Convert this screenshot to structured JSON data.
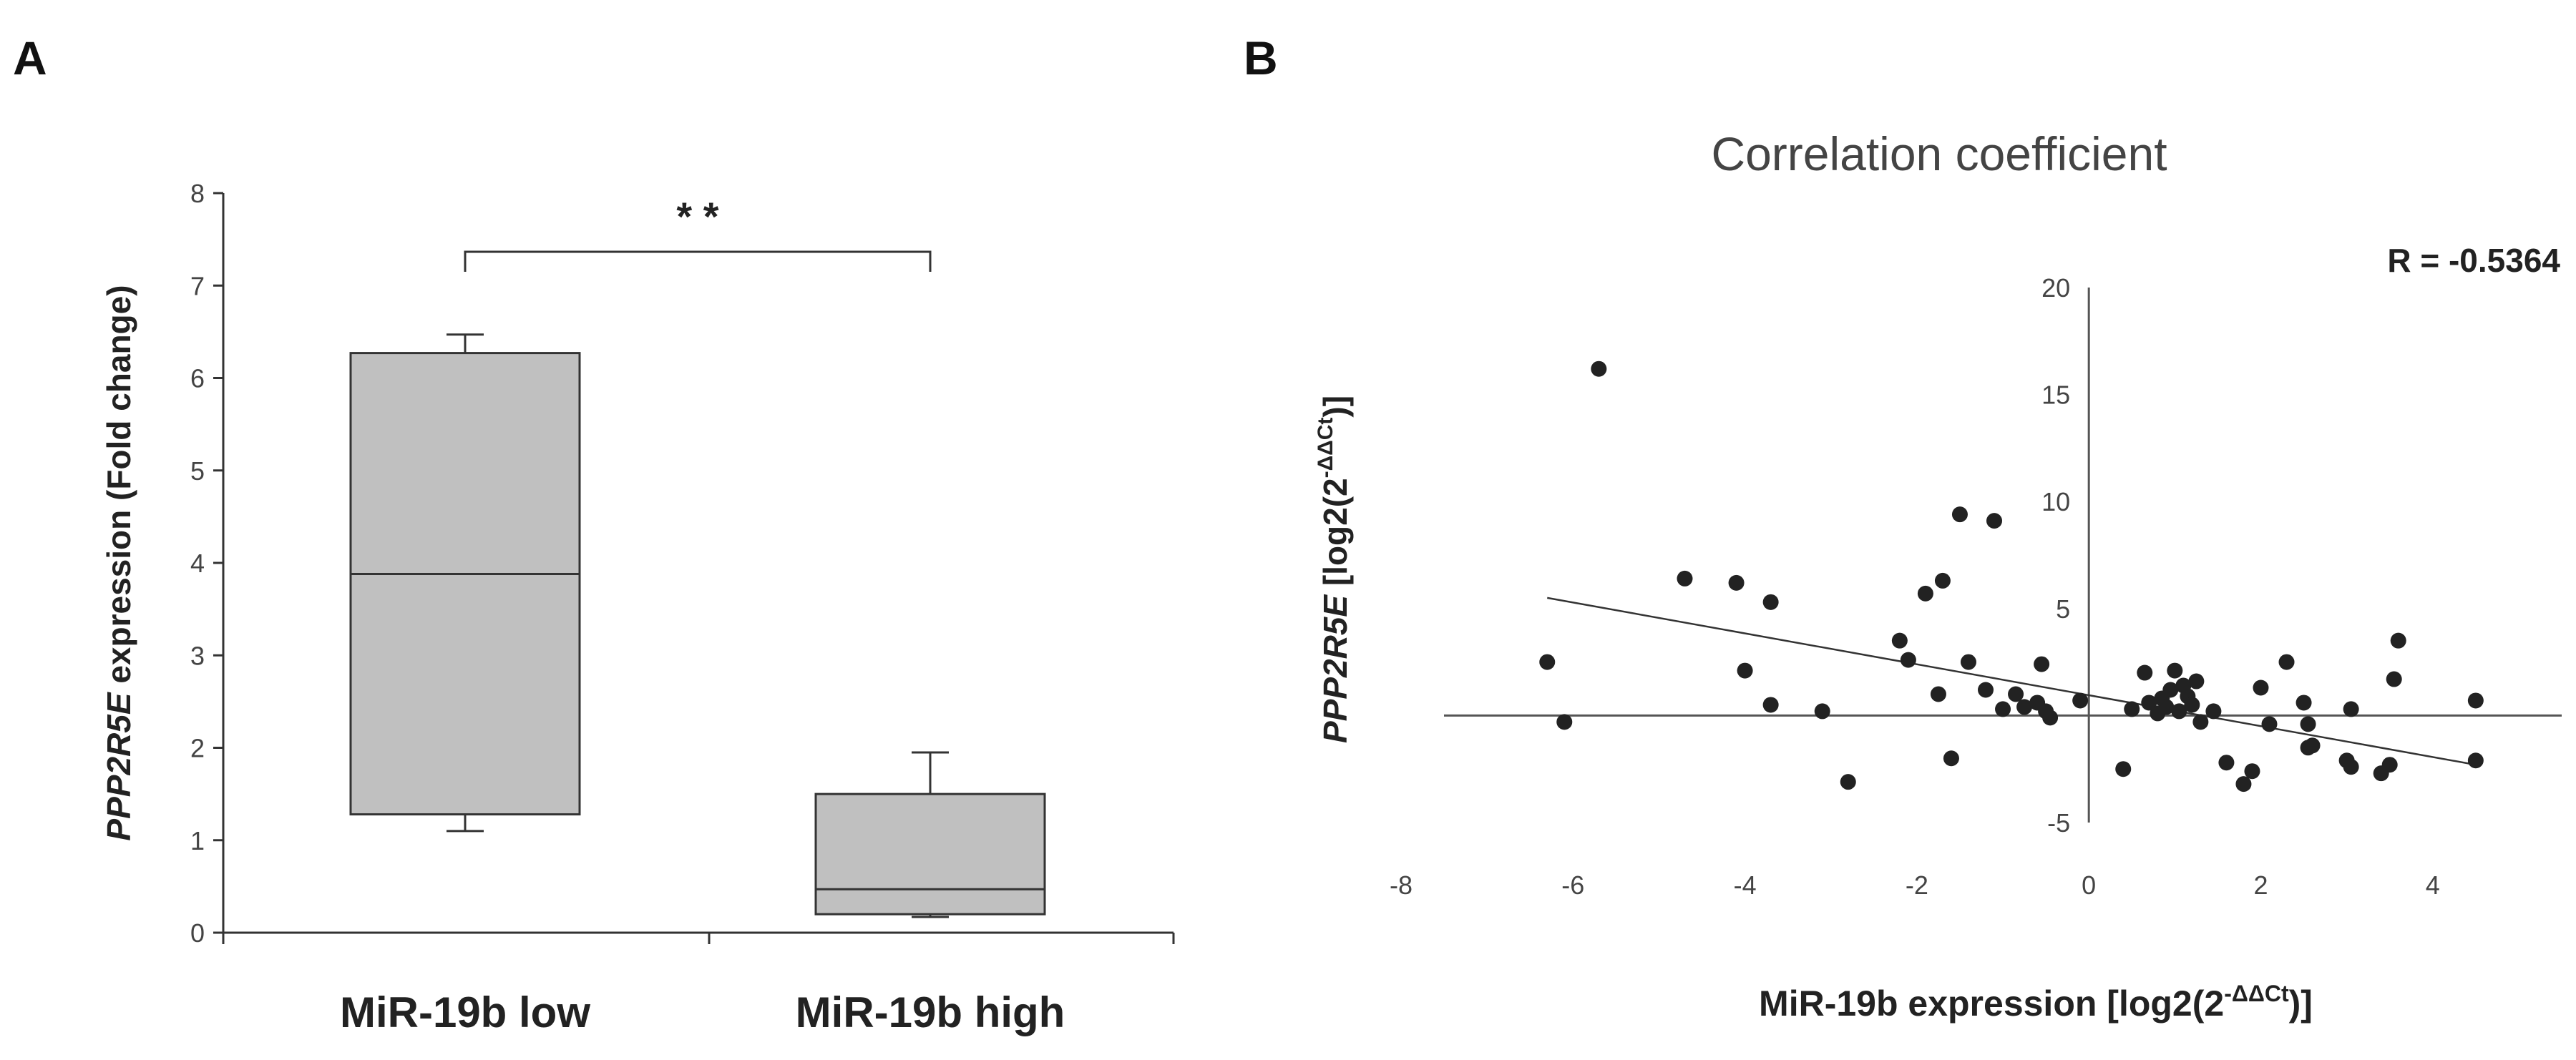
{
  "panels": {
    "a": "A",
    "b": "B"
  },
  "chart_data": [
    {
      "type": "box",
      "ylabel_italic": "PPP2R5E",
      "ylabel_rest": " expression (Fold change)",
      "ylim": [
        0,
        8
      ],
      "yticks": [
        0,
        1,
        2,
        3,
        4,
        5,
        6,
        7,
        8
      ],
      "categories": [
        "MiR-19b low",
        "MiR-19b high"
      ],
      "boxes": [
        {
          "name": "MiR-19b low",
          "whisker_low": 1.1,
          "q1": 1.28,
          "median": 3.88,
          "q3": 6.27,
          "whisker_high": 6.47
        },
        {
          "name": "MiR-19b high",
          "whisker_low": 0.17,
          "q1": 0.2,
          "median": 0.47,
          "q3": 1.5,
          "whisker_high": 1.95
        }
      ],
      "significance": "* *",
      "colors": {
        "box": "#c0c0c0",
        "line": "#333333"
      }
    },
    {
      "type": "scatter",
      "title": "Correlation coefficient",
      "annotation": "R = -0.5364",
      "xlabel_main": "MiR-19b expression [log2(2",
      "xlabel_sup": "-ΔΔCt",
      "xlabel_end": ")]",
      "ylabel_italic": "PPP2R5E",
      "ylabel_main": "  [log2(2",
      "ylabel_sup": "-ΔΔCt",
      "ylabel_end": ")]",
      "xlim": [
        -8,
        5.5
      ],
      "ylim": [
        -5,
        20
      ],
      "xticks": [
        -8,
        -6,
        -4,
        -2,
        0,
        2,
        4
      ],
      "yticks": [
        -5,
        5,
        10,
        15,
        20
      ],
      "trendline": {
        "x": [
          -6.3,
          4.5
        ],
        "y": [
          5.5,
          -2.3
        ]
      },
      "points": [
        [
          -5.7,
          16.2
        ],
        [
          -6.3,
          2.5
        ],
        [
          -6.1,
          -0.3
        ],
        [
          -4.7,
          6.4
        ],
        [
          -4.1,
          6.2
        ],
        [
          -3.7,
          5.3
        ],
        [
          -4.0,
          2.1
        ],
        [
          -3.7,
          0.5
        ],
        [
          -3.1,
          0.2
        ],
        [
          -2.8,
          -3.1
        ],
        [
          -2.2,
          3.5
        ],
        [
          -2.1,
          2.6
        ],
        [
          -1.9,
          5.7
        ],
        [
          -1.7,
          6.3
        ],
        [
          -1.75,
          1.0
        ],
        [
          -1.6,
          -2.0
        ],
        [
          -1.5,
          9.4
        ],
        [
          -1.1,
          9.1
        ],
        [
          -1.4,
          2.5
        ],
        [
          -1.2,
          1.2
        ],
        [
          -1.0,
          0.3
        ],
        [
          -0.85,
          1.0
        ],
        [
          -0.75,
          0.4
        ],
        [
          -0.6,
          0.6
        ],
        [
          -0.55,
          2.4
        ],
        [
          -0.5,
          0.2
        ],
        [
          -0.45,
          -0.1
        ],
        [
          -0.1,
          0.7
        ],
        [
          0.4,
          -2.5
        ],
        [
          0.5,
          0.3
        ],
        [
          0.65,
          2.0
        ],
        [
          0.7,
          0.6
        ],
        [
          0.8,
          0.1
        ],
        [
          0.85,
          0.8
        ],
        [
          0.9,
          0.4
        ],
        [
          0.95,
          1.2
        ],
        [
          1.0,
          2.1
        ],
        [
          1.05,
          0.2
        ],
        [
          1.1,
          1.4
        ],
        [
          1.15,
          0.9
        ],
        [
          1.2,
          0.5
        ],
        [
          1.25,
          1.6
        ],
        [
          1.3,
          -0.3
        ],
        [
          1.45,
          0.2
        ],
        [
          1.6,
          -2.2
        ],
        [
          1.8,
          -3.2
        ],
        [
          1.9,
          -2.6
        ],
        [
          2.0,
          1.3
        ],
        [
          2.1,
          -0.4
        ],
        [
          2.3,
          2.5
        ],
        [
          2.5,
          0.6
        ],
        [
          2.55,
          -0.4
        ],
        [
          2.6,
          -1.4
        ],
        [
          2.55,
          -1.5
        ],
        [
          3.0,
          -2.1
        ],
        [
          3.05,
          -2.4
        ],
        [
          3.05,
          0.3
        ],
        [
          3.4,
          -2.7
        ],
        [
          3.5,
          -2.3
        ],
        [
          3.55,
          1.7
        ],
        [
          3.6,
          3.5
        ],
        [
          4.5,
          -2.1
        ],
        [
          4.5,
          0.7
        ]
      ],
      "colors": {
        "point": "#222222",
        "axis": "#555555"
      }
    }
  ]
}
